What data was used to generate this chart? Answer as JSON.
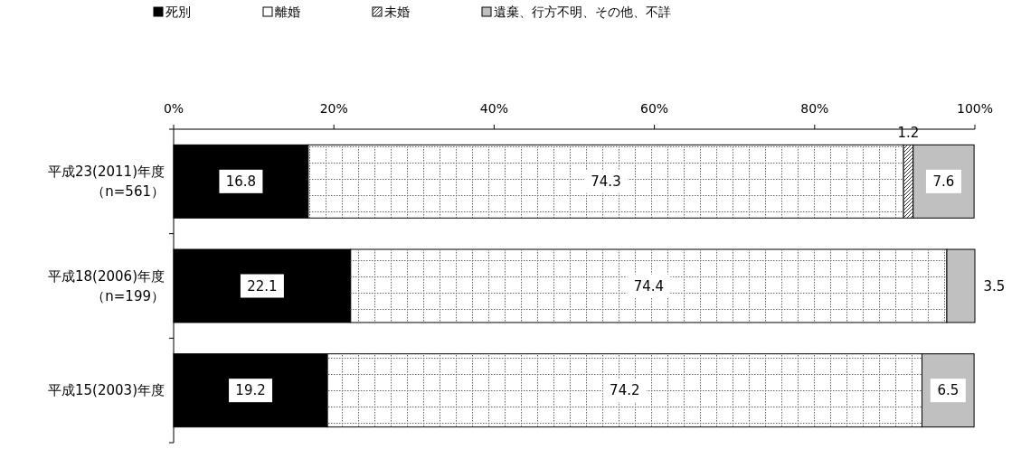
{
  "chart_data": {
    "type": "bar",
    "orientation": "horizontal",
    "stacked": true,
    "categories": [
      "平成23(2011)年度（n=561）",
      "平成18(2006)年度（n=199）",
      "平成15(2003)年度"
    ],
    "series": [
      {
        "name": "死別",
        "color": "#000000",
        "values": [
          16.8,
          22.1,
          19.2
        ]
      },
      {
        "name": "離婚",
        "color": "#ffffff",
        "values": [
          74.3,
          74.4,
          74.2
        ]
      },
      {
        "name": "未婚",
        "color": "#ffffff",
        "values": [
          1.2,
          null,
          null
        ]
      },
      {
        "name": "遺棄、行方不明、その他、不詳",
        "color": "#c0c0c0",
        "values": [
          7.6,
          3.5,
          6.5
        ]
      }
    ],
    "xlim": [
      0,
      100
    ],
    "xticks": [
      {
        "value": 0,
        "label": "0%"
      },
      {
        "value": 20,
        "label": "20%"
      },
      {
        "value": 40,
        "label": "40%"
      },
      {
        "value": 60,
        "label": "60%"
      },
      {
        "value": 80,
        "label": "80%"
      },
      {
        "value": 100,
        "label": "100%"
      }
    ],
    "data_labels": true,
    "legend": "top",
    "grid": false
  }
}
